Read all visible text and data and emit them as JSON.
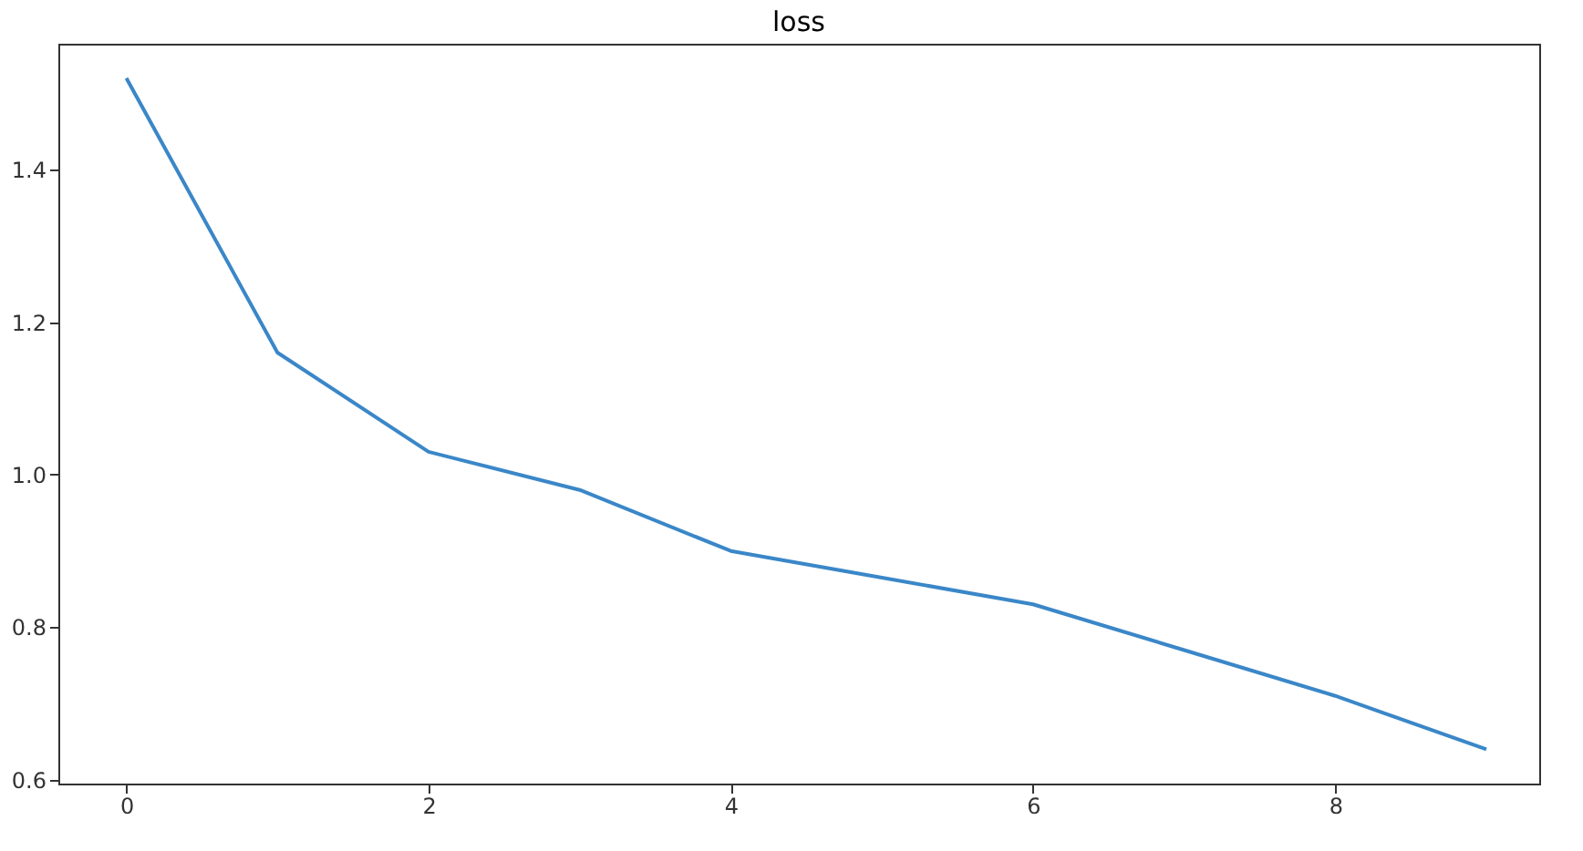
{
  "chart_data": {
    "type": "line",
    "title": "loss",
    "x": [
      0,
      1,
      2,
      3,
      4,
      5,
      6,
      7,
      8,
      9
    ],
    "series": [
      {
        "color": "#3a87c8",
        "values": [
          1.52,
          1.16,
          1.03,
          0.98,
          0.9,
          0.865,
          0.83,
          0.77,
          0.71,
          0.64
        ]
      }
    ],
    "xlim": [
      -0.45,
      9.35
    ],
    "xticks": [
      0,
      2,
      4,
      6,
      8
    ],
    "ylim": [
      0.595,
      1.565
    ],
    "yticks": [
      0.6,
      0.8,
      {
        "value": 1,
        "label": "1.0"
      },
      1.2,
      1.4
    ],
    "grid": false,
    "legend": false,
    "marker": "none",
    "line_style": "solid"
  }
}
